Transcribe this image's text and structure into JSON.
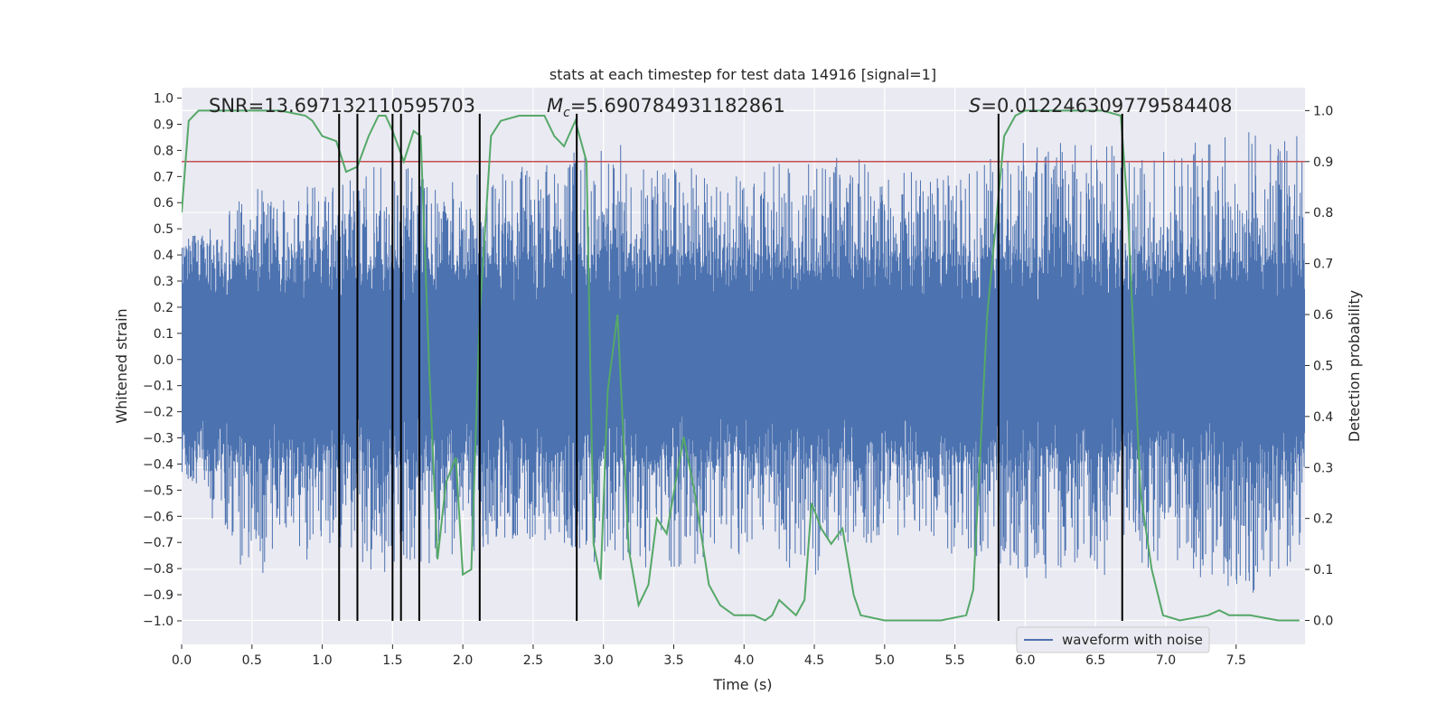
{
  "chart_data": {
    "type": "line",
    "title": "stats at each timestep for test data 14916 [signal=1]",
    "xlabel": "Time (s)",
    "ylabel_left": "Whitened strain",
    "ylabel_right": "Detection probability",
    "xlim": [
      0.0,
      7.99
    ],
    "ylim_left": [
      -1.09,
      1.04
    ],
    "ylim_right": [
      -0.047,
      1.045
    ],
    "x_ticks": [
      0.0,
      0.5,
      1.0,
      1.5,
      2.0,
      2.5,
      3.0,
      3.5,
      4.0,
      4.5,
      5.0,
      5.5,
      6.0,
      6.5,
      7.0,
      7.5
    ],
    "y_left_ticks": [
      1.0,
      0.9,
      0.8,
      0.7,
      0.6,
      0.5,
      0.4,
      0.3,
      0.2,
      0.1,
      0.0,
      -0.1,
      -0.2,
      -0.3,
      -0.4,
      -0.5,
      -0.6,
      -0.7,
      -0.8,
      -0.9,
      -1.0
    ],
    "y_right_ticks": [
      1.0,
      0.9,
      0.8,
      0.7,
      0.6,
      0.5,
      0.4,
      0.3,
      0.2,
      0.1,
      0.0
    ],
    "grid": true,
    "legend_placement": "lower-right",
    "annotations": {
      "snr": "SNR=13.697132110595703",
      "mc_symbol": "M",
      "mc_sub": "c",
      "mc_value": "=5.690784931182861",
      "s_symbol": "S",
      "s_value": "=0.012246309779584408"
    },
    "series": [
      {
        "name": "waveform with noise",
        "axis": "left",
        "color": "#4c72b0",
        "note": "dense noise band",
        "upper_envelope": [
          [
            0.0,
            0.45
          ],
          [
            0.5,
            0.65
          ],
          [
            1.0,
            0.7
          ],
          [
            1.5,
            0.75
          ],
          [
            2.0,
            0.7
          ],
          [
            2.5,
            0.75
          ],
          [
            3.0,
            0.85
          ],
          [
            3.5,
            0.75
          ],
          [
            4.0,
            0.7
          ],
          [
            4.5,
            0.8
          ],
          [
            5.0,
            0.75
          ],
          [
            5.5,
            0.7
          ],
          [
            6.0,
            0.85
          ],
          [
            6.5,
            0.85
          ],
          [
            7.0,
            0.8
          ],
          [
            7.5,
            0.9
          ],
          [
            7.99,
            0.85
          ]
        ],
        "lower_envelope": [
          [
            0.0,
            -0.45
          ],
          [
            0.5,
            -0.85
          ],
          [
            1.0,
            -0.75
          ],
          [
            1.5,
            -0.85
          ],
          [
            2.0,
            -0.75
          ],
          [
            2.5,
            -0.7
          ],
          [
            3.0,
            -0.8
          ],
          [
            3.5,
            -0.8
          ],
          [
            4.0,
            -0.75
          ],
          [
            4.5,
            -0.85
          ],
          [
            5.0,
            -0.7
          ],
          [
            5.5,
            -0.75
          ],
          [
            6.0,
            -0.85
          ],
          [
            6.5,
            -0.85
          ],
          [
            7.0,
            -0.8
          ],
          [
            7.5,
            -0.95
          ],
          [
            7.99,
            -0.75
          ]
        ]
      },
      {
        "name": "detection probability",
        "axis": "right",
        "color": "#55a868",
        "points": [
          [
            0.0,
            0.8
          ],
          [
            0.05,
            0.98
          ],
          [
            0.12,
            1.0
          ],
          [
            0.3,
            1.0
          ],
          [
            0.5,
            1.0
          ],
          [
            0.7,
            1.0
          ],
          [
            0.88,
            0.99
          ],
          [
            0.93,
            0.98
          ],
          [
            1.0,
            0.95
          ],
          [
            1.1,
            0.94
          ],
          [
            1.17,
            0.88
          ],
          [
            1.25,
            0.89
          ],
          [
            1.33,
            0.95
          ],
          [
            1.4,
            0.99
          ],
          [
            1.45,
            0.99
          ],
          [
            1.5,
            0.96
          ],
          [
            1.58,
            0.9
          ],
          [
            1.65,
            0.96
          ],
          [
            1.7,
            0.95
          ],
          [
            1.76,
            0.5
          ],
          [
            1.82,
            0.12
          ],
          [
            1.88,
            0.27
          ],
          [
            1.95,
            0.32
          ],
          [
            2.0,
            0.09
          ],
          [
            2.06,
            0.1
          ],
          [
            2.12,
            0.6
          ],
          [
            2.2,
            0.95
          ],
          [
            2.27,
            0.98
          ],
          [
            2.4,
            0.99
          ],
          [
            2.58,
            0.99
          ],
          [
            2.65,
            0.95
          ],
          [
            2.72,
            0.93
          ],
          [
            2.8,
            0.98
          ],
          [
            2.88,
            0.9
          ],
          [
            2.93,
            0.15
          ],
          [
            2.98,
            0.08
          ],
          [
            3.03,
            0.45
          ],
          [
            3.1,
            0.6
          ],
          [
            3.18,
            0.14
          ],
          [
            3.25,
            0.03
          ],
          [
            3.32,
            0.07
          ],
          [
            3.38,
            0.2
          ],
          [
            3.45,
            0.17
          ],
          [
            3.57,
            0.36
          ],
          [
            3.65,
            0.25
          ],
          [
            3.75,
            0.07
          ],
          [
            3.83,
            0.03
          ],
          [
            3.93,
            0.01
          ],
          [
            4.07,
            0.01
          ],
          [
            4.15,
            0.0
          ],
          [
            4.2,
            0.01
          ],
          [
            4.25,
            0.04
          ],
          [
            4.33,
            0.02
          ],
          [
            4.37,
            0.01
          ],
          [
            4.43,
            0.04
          ],
          [
            4.48,
            0.23
          ],
          [
            4.55,
            0.18
          ],
          [
            4.62,
            0.15
          ],
          [
            4.7,
            0.18
          ],
          [
            4.78,
            0.05
          ],
          [
            4.83,
            0.01
          ],
          [
            5.0,
            0.0
          ],
          [
            5.2,
            0.0
          ],
          [
            5.4,
            0.0
          ],
          [
            5.58,
            0.01
          ],
          [
            5.63,
            0.06
          ],
          [
            5.73,
            0.6
          ],
          [
            5.85,
            0.95
          ],
          [
            5.93,
            0.99
          ],
          [
            6.0,
            1.0
          ],
          [
            6.2,
            1.0
          ],
          [
            6.4,
            1.0
          ],
          [
            6.55,
            1.0
          ],
          [
            6.68,
            0.99
          ],
          [
            6.73,
            0.8
          ],
          [
            6.82,
            0.25
          ],
          [
            6.9,
            0.1
          ],
          [
            6.98,
            0.01
          ],
          [
            7.1,
            0.0
          ],
          [
            7.3,
            0.01
          ],
          [
            7.38,
            0.02
          ],
          [
            7.45,
            0.01
          ],
          [
            7.6,
            0.01
          ],
          [
            7.8,
            0.0
          ],
          [
            7.95,
            0.0
          ]
        ]
      },
      {
        "name": "threshold",
        "axis": "right",
        "color": "#c44e52",
        "value": 0.9
      }
    ],
    "vertical_lines": [
      1.12,
      1.25,
      1.5,
      1.56,
      1.69,
      2.12,
      2.81,
      5.81,
      6.69
    ],
    "vertical_lines_range_left": [
      -1.0,
      0.94
    ],
    "legend": [
      "waveform with noise"
    ]
  }
}
